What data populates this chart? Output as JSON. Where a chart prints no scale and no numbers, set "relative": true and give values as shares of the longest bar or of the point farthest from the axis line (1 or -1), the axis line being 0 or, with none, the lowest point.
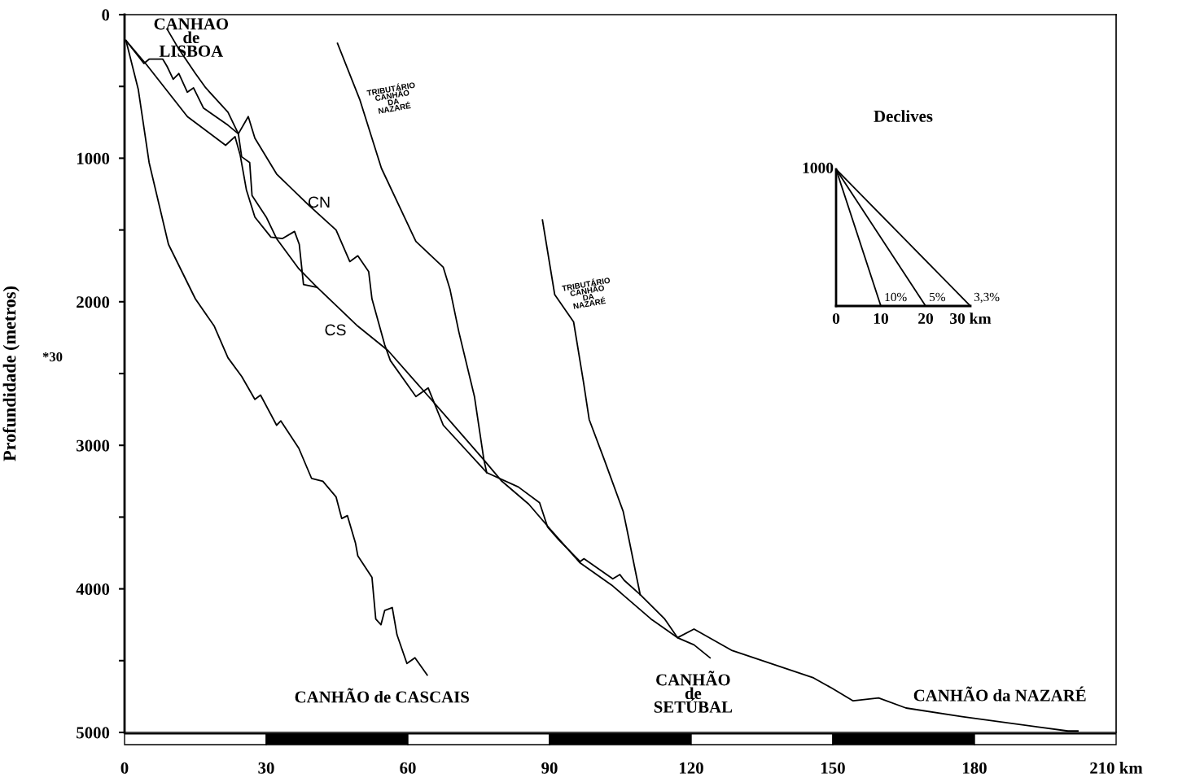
{
  "chart_data": [
    {
      "type": "line",
      "ylabel": "Profundidade (metros)",
      "xlim": [
        0,
        210
      ],
      "ylim": [
        5000,
        0
      ],
      "xticks": [
        0,
        30,
        60,
        90,
        120,
        150,
        180,
        {
          "value": 210,
          "label": "210 km"
        }
      ],
      "yticks": [
        0,
        {
          "value": 500,
          "label": null
        },
        1000,
        {
          "value": 1500,
          "label": null
        },
        2000,
        {
          "value": 2500,
          "label": null
        },
        3000,
        {
          "value": 3500,
          "label": null
        },
        4000,
        {
          "value": 4500,
          "label": null
        },
        5000
      ],
      "grid": false,
      "legend": false,
      "series": [
        {
          "name": "CANHAO\nde\nLISBOA",
          "color": "#000000",
          "x": [
            9.0,
            11.5,
            15.0,
            17.2,
            21.9,
            24.1,
            24.8,
            26.5,
            27.0,
            30.0,
            32.2,
            36.9,
            40.8
          ],
          "values": [
            100,
            240,
            410,
            510,
            680,
            830,
            990,
            1030,
            1260,
            1410,
            1560,
            1770,
            1900
          ]
        },
        {
          "name": "CANHÃO de CASCAIS",
          "color": "#000000",
          "x": [
            0.3,
            2.9,
            5.2,
            9.3,
            15.0,
            19.0,
            21.9,
            24.8,
            27.6,
            28.8,
            32.2,
            33.1,
            36.9,
            39.6,
            42.0,
            44.8,
            46.0,
            47.2,
            48.9,
            49.4,
            52.4,
            53.2,
            54.3,
            55.1,
            56.7,
            57.7,
            59.8,
            61.5,
            64.1
          ],
          "values": [
            180,
            520,
            1030,
            1600,
            1980,
            2170,
            2390,
            2520,
            2680,
            2650,
            2860,
            2830,
            3020,
            3230,
            3250,
            3360,
            3510,
            3490,
            3680,
            3770,
            3920,
            4210,
            4250,
            4150,
            4130,
            4320,
            4520,
            4480,
            4600
          ]
        },
        {
          "name": "CANHÃO\nde\nSETÚBAL",
          "color": "#000000",
          "x": [
            0.3,
            4.7,
            13.3,
            21.4,
            23.4,
            24.5,
            25.8,
            27.6,
            31.0,
            33.4,
            36.0,
            37.0,
            37.9,
            40.8,
            49.4,
            55.8,
            64.4,
            75.8,
            79.9,
            85.6,
            90.3,
            96.5,
            103.4,
            111.5,
            117.1,
            120.6,
            124.0
          ],
          "values": [
            180,
            350,
            710,
            910,
            850,
            980,
            1220,
            1410,
            1550,
            1560,
            1510,
            1600,
            1880,
            1900,
            2170,
            2340,
            2660,
            3090,
            3250,
            3410,
            3590,
            3820,
            3980,
            4210,
            4340,
            4390,
            4480
          ]
        },
        {
          "name": "CANHÃO da NAZARÉ",
          "color": "#000000",
          "x": [
            0.3,
            4.1,
            5.2,
            8.1,
            9.0,
            10.3,
            11.5,
            13.3,
            14.6,
            16.7,
            21.9,
            24.1,
            26.2,
            27.6,
            32.2,
            39.1,
            44.8,
            47.7,
            49.4,
            51.7,
            52.4,
            55.1,
            56.3,
            61.7,
            64.3,
            67.5,
            76.7,
            83.4,
            87.9,
            89.6,
            92.0,
            96.5,
            97.3,
            103.4,
            104.9,
            105.8,
            109.2,
            114.4,
            117.1,
            120.6,
            128.7,
            145.9,
            149.7,
            154.3,
            159.7,
            165.5,
            177.4,
            199.8,
            201.9
          ],
          "values": [
            180,
            340,
            310,
            310,
            360,
            450,
            410,
            540,
            510,
            650,
            770,
            830,
            710,
            860,
            1110,
            1330,
            1500,
            1720,
            1680,
            1790,
            1980,
            2300,
            2410,
            2660,
            2600,
            2860,
            3190,
            3290,
            3400,
            3570,
            3660,
            3810,
            3790,
            3930,
            3900,
            3940,
            4040,
            4210,
            4340,
            4280,
            4430,
            4620,
            4690,
            4780,
            4760,
            4830,
            4890,
            4990,
            4990
          ]
        },
        {
          "name": "TRIBUTÁRIO\nCANHÃO\nDA\nNAZARÉ",
          "color": "#000000",
          "x": [
            45.1,
            49.8,
            54.4,
            61.7,
            67.5,
            68.9,
            70.8,
            74.1,
            76.1,
            76.7
          ],
          "values": [
            200,
            590,
            1070,
            1580,
            1760,
            1910,
            2210,
            2660,
            3100,
            3190
          ]
        },
        {
          "name": "TRIBUTÁRIO\nCANHÃO\nDA\nNAZARÉ",
          "color": "#000000",
          "x": [
            88.5,
            91.1,
            95.1,
            97.2,
            98.4,
            101.6,
            105.6,
            106.3,
            109.2
          ],
          "values": [
            1430,
            1950,
            2140,
            2560,
            2820,
            3100,
            3460,
            3570,
            4040
          ]
        }
      ],
      "annotations": [
        "CN",
        "CS",
        "*30"
      ]
    },
    {
      "type": "line",
      "title": "Declives",
      "relative": true,
      "xlim": [
        0,
        30
      ],
      "xticks": [
        0,
        10,
        20,
        {
          "value": 30,
          "label": "30 km"
        }
      ],
      "grid": false,
      "legend": false,
      "series": [
        {
          "color": "#000000",
          "x": [
            0,
            10
          ],
          "values": [
            1,
            0
          ]
        },
        {
          "color": "#000000",
          "x": [
            0,
            20
          ],
          "values": [
            1,
            0
          ]
        },
        {
          "color": "#000000",
          "x": [
            0,
            30
          ],
          "values": [
            1,
            0
          ]
        }
      ],
      "annotations": [
        {
          "text": "10%",
          "x": 10,
          "y": 0
        },
        {
          "text": "5%",
          "x": 20,
          "y": 0
        },
        {
          "text": "3,3%",
          "x": 30,
          "y": 0
        },
        "1000"
      ]
    }
  ]
}
